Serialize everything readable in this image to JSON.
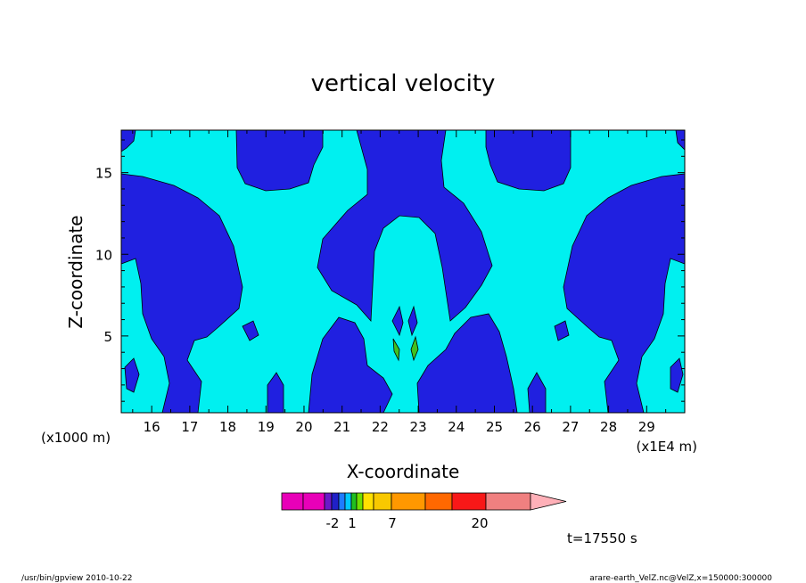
{
  "chart_data": {
    "type": "contour",
    "title": "vertical velocity",
    "xlabel": "X-coordinate",
    "ylabel": "Z-coordinate",
    "x_unit_note": "(x1E4 m)",
    "y_unit_note": "(x1000 m)",
    "xlim": [
      15.2,
      30.0
    ],
    "ylim": [
      0.3,
      17.6
    ],
    "x_ticks": [
      "16",
      "17",
      "18",
      "19",
      "20",
      "21",
      "22",
      "23",
      "24",
      "25",
      "26",
      "27",
      "28",
      "29"
    ],
    "y_ticks": [
      "5",
      "10",
      "15"
    ],
    "colorbar": {
      "tick_labels": [
        "-2",
        "1",
        "7",
        "20"
      ],
      "colors": [
        "#e800b8",
        "#e800b8",
        "#6a1ac8",
        "#2020c8",
        "#1e7cff",
        "#00c8ff",
        "#20c020",
        "#70e000",
        "#ffe000",
        "#f8c800",
        "#ff9800",
        "#ff6800",
        "#f81818",
        "#f08080",
        "#ffb0b8"
      ]
    },
    "contour_colors": {
      "weak_positive": "#00f0f0",
      "weak_negative": "#2020e0",
      "strong_positive": "#40c020"
    },
    "time_label": "t=17550 s"
  },
  "footer": {
    "left": "/usr/bin/gpview  2010-10-22",
    "right": "arare-earth_VelZ.nc@VelZ,x=150000:300000"
  }
}
